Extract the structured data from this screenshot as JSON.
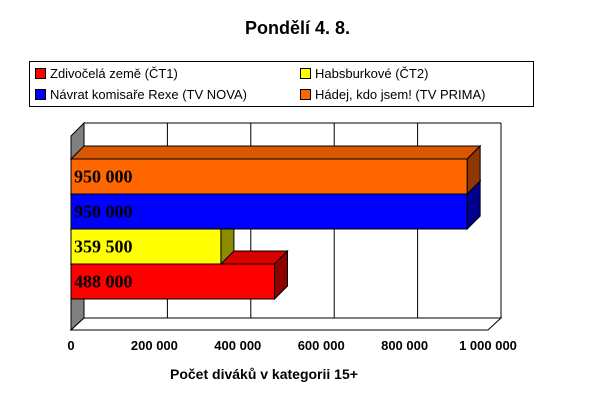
{
  "chart_data": {
    "type": "bar",
    "orientation": "horizontal",
    "title": "Pondělí 4. 8.",
    "xlabel": "Počet diváků v kategorii 15+",
    "ylabel": "",
    "xlim": [
      0,
      1000000
    ],
    "x_ticks": [
      0,
      200000,
      400000,
      600000,
      800000,
      1000000
    ],
    "x_tick_labels": [
      "0",
      "200 000",
      "400 000",
      "600 000",
      "800 000",
      "1 000 000"
    ],
    "grid": true,
    "legend_position": "top",
    "series": [
      {
        "name": "Zdivočelá země (ČT1)",
        "value": 488000,
        "label": "488 000",
        "color": "#ff0000"
      },
      {
        "name": "Habsburkové (ČT2)",
        "value": 359500,
        "label": "359 500",
        "color": "#ffff00"
      },
      {
        "name": "Návrat komisaře Rexe (TV NOVA)",
        "value": 950000,
        "label": "950 000",
        "color": "#0000ff"
      },
      {
        "name": "Hádej, kdo jsem! (TV PRIMA)",
        "value": 950000,
        "label": "950 000",
        "color": "#ff6600"
      }
    ]
  }
}
